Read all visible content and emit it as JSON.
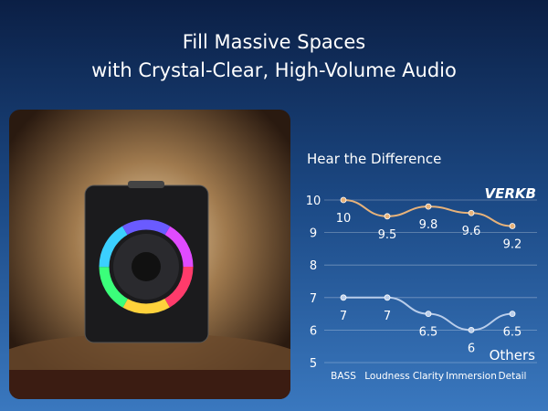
{
  "header": {
    "lines": [
      "Fill Massive Spaces",
      "with Crystal-Clear, High-Volume Audio"
    ]
  },
  "chart_data": {
    "type": "line",
    "title": "Hear the Difference",
    "categories": [
      "BASS",
      "Loudness",
      "Clarity",
      "Immersion",
      "Detail"
    ],
    "series": [
      {
        "name": "VERKB",
        "color": "#e7b27a",
        "values": [
          10,
          9.5,
          9.8,
          9.6,
          9.2
        ]
      },
      {
        "name": "Others",
        "color": "#b9cdea",
        "values": [
          7,
          7,
          6.5,
          6,
          6.5
        ]
      }
    ],
    "ylim": [
      5,
      10
    ],
    "yticks": [
      5,
      6,
      7,
      8,
      9,
      10
    ],
    "grid": true
  }
}
